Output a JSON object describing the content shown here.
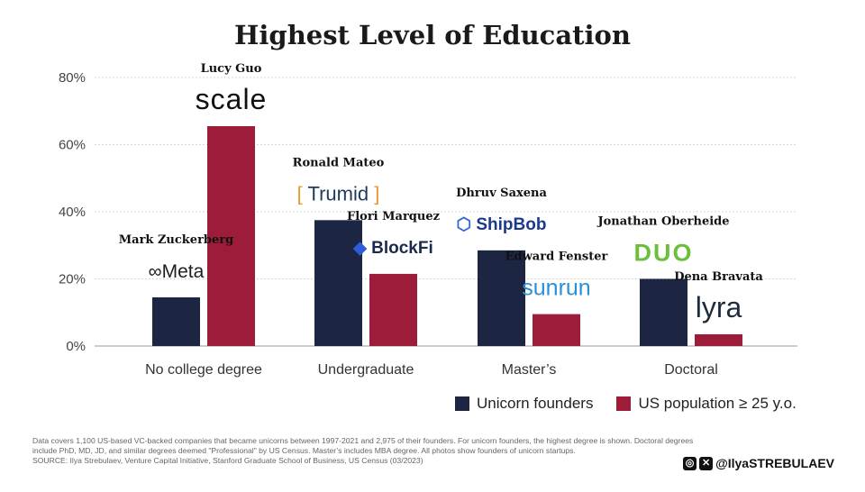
{
  "title": "Highest Level of Education",
  "chart_data": {
    "type": "bar",
    "categories": [
      "No college degree",
      "Undergraduate",
      "Master’s",
      "Doctoral"
    ],
    "series": [
      {
        "name": "Unicorn founders",
        "color": "#1c2541",
        "values": [
          14.5,
          37.5,
          28.5,
          20
        ]
      },
      {
        "name": "US population ≥ 25 y.o.",
        "color": "#9c1c3a",
        "values": [
          65.5,
          21.5,
          9.5,
          3.5
        ]
      }
    ],
    "ylim": [
      0,
      80
    ],
    "yticks": [
      0,
      20,
      40,
      60,
      80
    ],
    "ytick_labels": [
      "0%",
      "20%",
      "40%",
      "60%",
      "80%"
    ],
    "grid": "dotted horizontal",
    "legend_position": "bottom-right",
    "annotations": [
      {
        "category": 0,
        "series": 0,
        "founder": "Mark Zuckerberg",
        "company": "Meta",
        "logo": "meta-logo",
        "color": "#1d1d1d"
      },
      {
        "category": 0,
        "series": 1,
        "founder": "Lucy Guo",
        "company": "scale",
        "logo": "scale-logo",
        "color": "#111111"
      },
      {
        "category": 1,
        "series": 0,
        "founder": "Ronald Mateo",
        "company": "Trumid",
        "logo": "trumid-logo",
        "color": "#1f3a5a"
      },
      {
        "category": 1,
        "series": 1,
        "founder": "Flori Marquez",
        "company": "BlockFi",
        "logo": "blockfi-logo",
        "color": "#1b2a4a"
      },
      {
        "category": 2,
        "series": 0,
        "founder": "Dhruv Saxena",
        "company": "ShipBob",
        "logo": "shipbob-logo",
        "color": "#1a3a8c"
      },
      {
        "category": 2,
        "series": 1,
        "founder": "Edward Fenster",
        "company": "sunrun",
        "logo": "sunrun-logo",
        "color": "#2b8fd6"
      },
      {
        "category": 3,
        "series": 0,
        "founder": "Jonathan Oberheide",
        "company": "DUO",
        "logo": "duo-logo",
        "color": "#6bbf3a"
      },
      {
        "category": 3,
        "series": 1,
        "founder": "Dena Bravata",
        "company": "lyra",
        "logo": "lyra-logo",
        "color": "#1d2b3a"
      }
    ]
  },
  "notes": {
    "line1": "Data covers 1,100 US-based VC-backed companies that became unicorns between 1997-2021 and 2,975 of their founders. For unicorn founders, the highest degree is shown. Doctoral degrees",
    "line2": "include PhD, MD, JD, and similar degrees deemed \"Professional\" by US Census. Master’s includes MBA degree. All photos show founders of unicorn startups.",
    "source": "SOURCE: Ilya Strebulaev, Venture Capital Initiative, Stanford Graduate School of Business, US Census (03/2023)"
  },
  "social": {
    "handle": "@IlyaSTREBULAEV",
    "icons": [
      "instagram-icon",
      "x-icon"
    ]
  }
}
